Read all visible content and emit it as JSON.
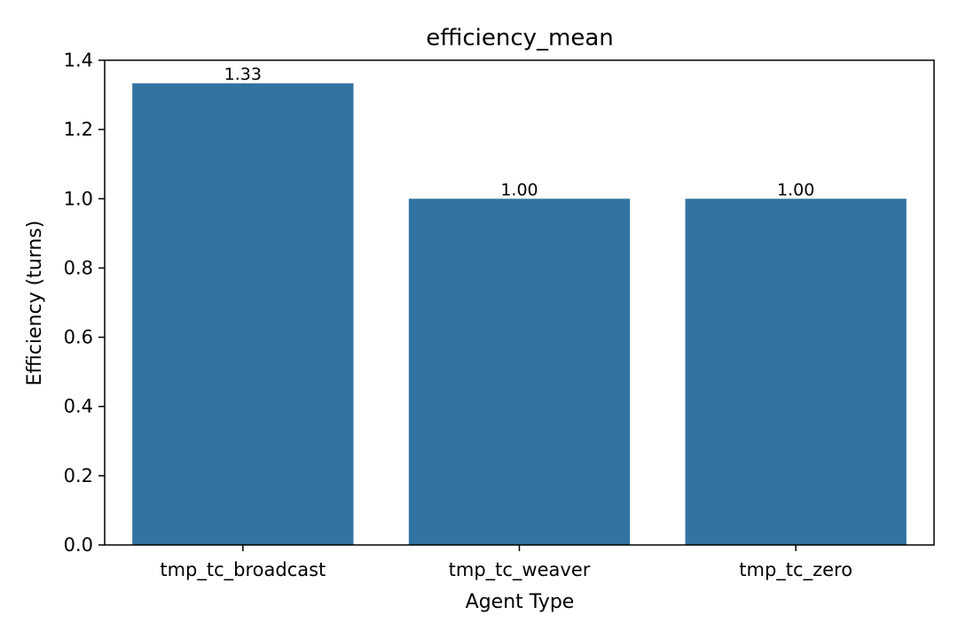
{
  "chart_data": {
    "type": "bar",
    "title": "efficiency_mean",
    "xlabel": "Agent Type",
    "ylabel": "Efficiency (turns)",
    "categories": [
      "tmp_tc_broadcast",
      "tmp_tc_weaver",
      "tmp_tc_zero"
    ],
    "values": [
      1.3333,
      1.0,
      1.0
    ],
    "data_labels": [
      "1.33",
      "1.00",
      "1.00"
    ],
    "ylim": [
      0,
      1.4
    ],
    "yticks": [
      0.0,
      0.2,
      0.4,
      0.6,
      0.8,
      1.0,
      1.2,
      1.4
    ],
    "ytick_labels": [
      "0.0",
      "0.2",
      "0.4",
      "0.6",
      "0.8",
      "1.0",
      "1.2",
      "1.4"
    ],
    "grid": false,
    "bar_color": "#3274a1"
  }
}
